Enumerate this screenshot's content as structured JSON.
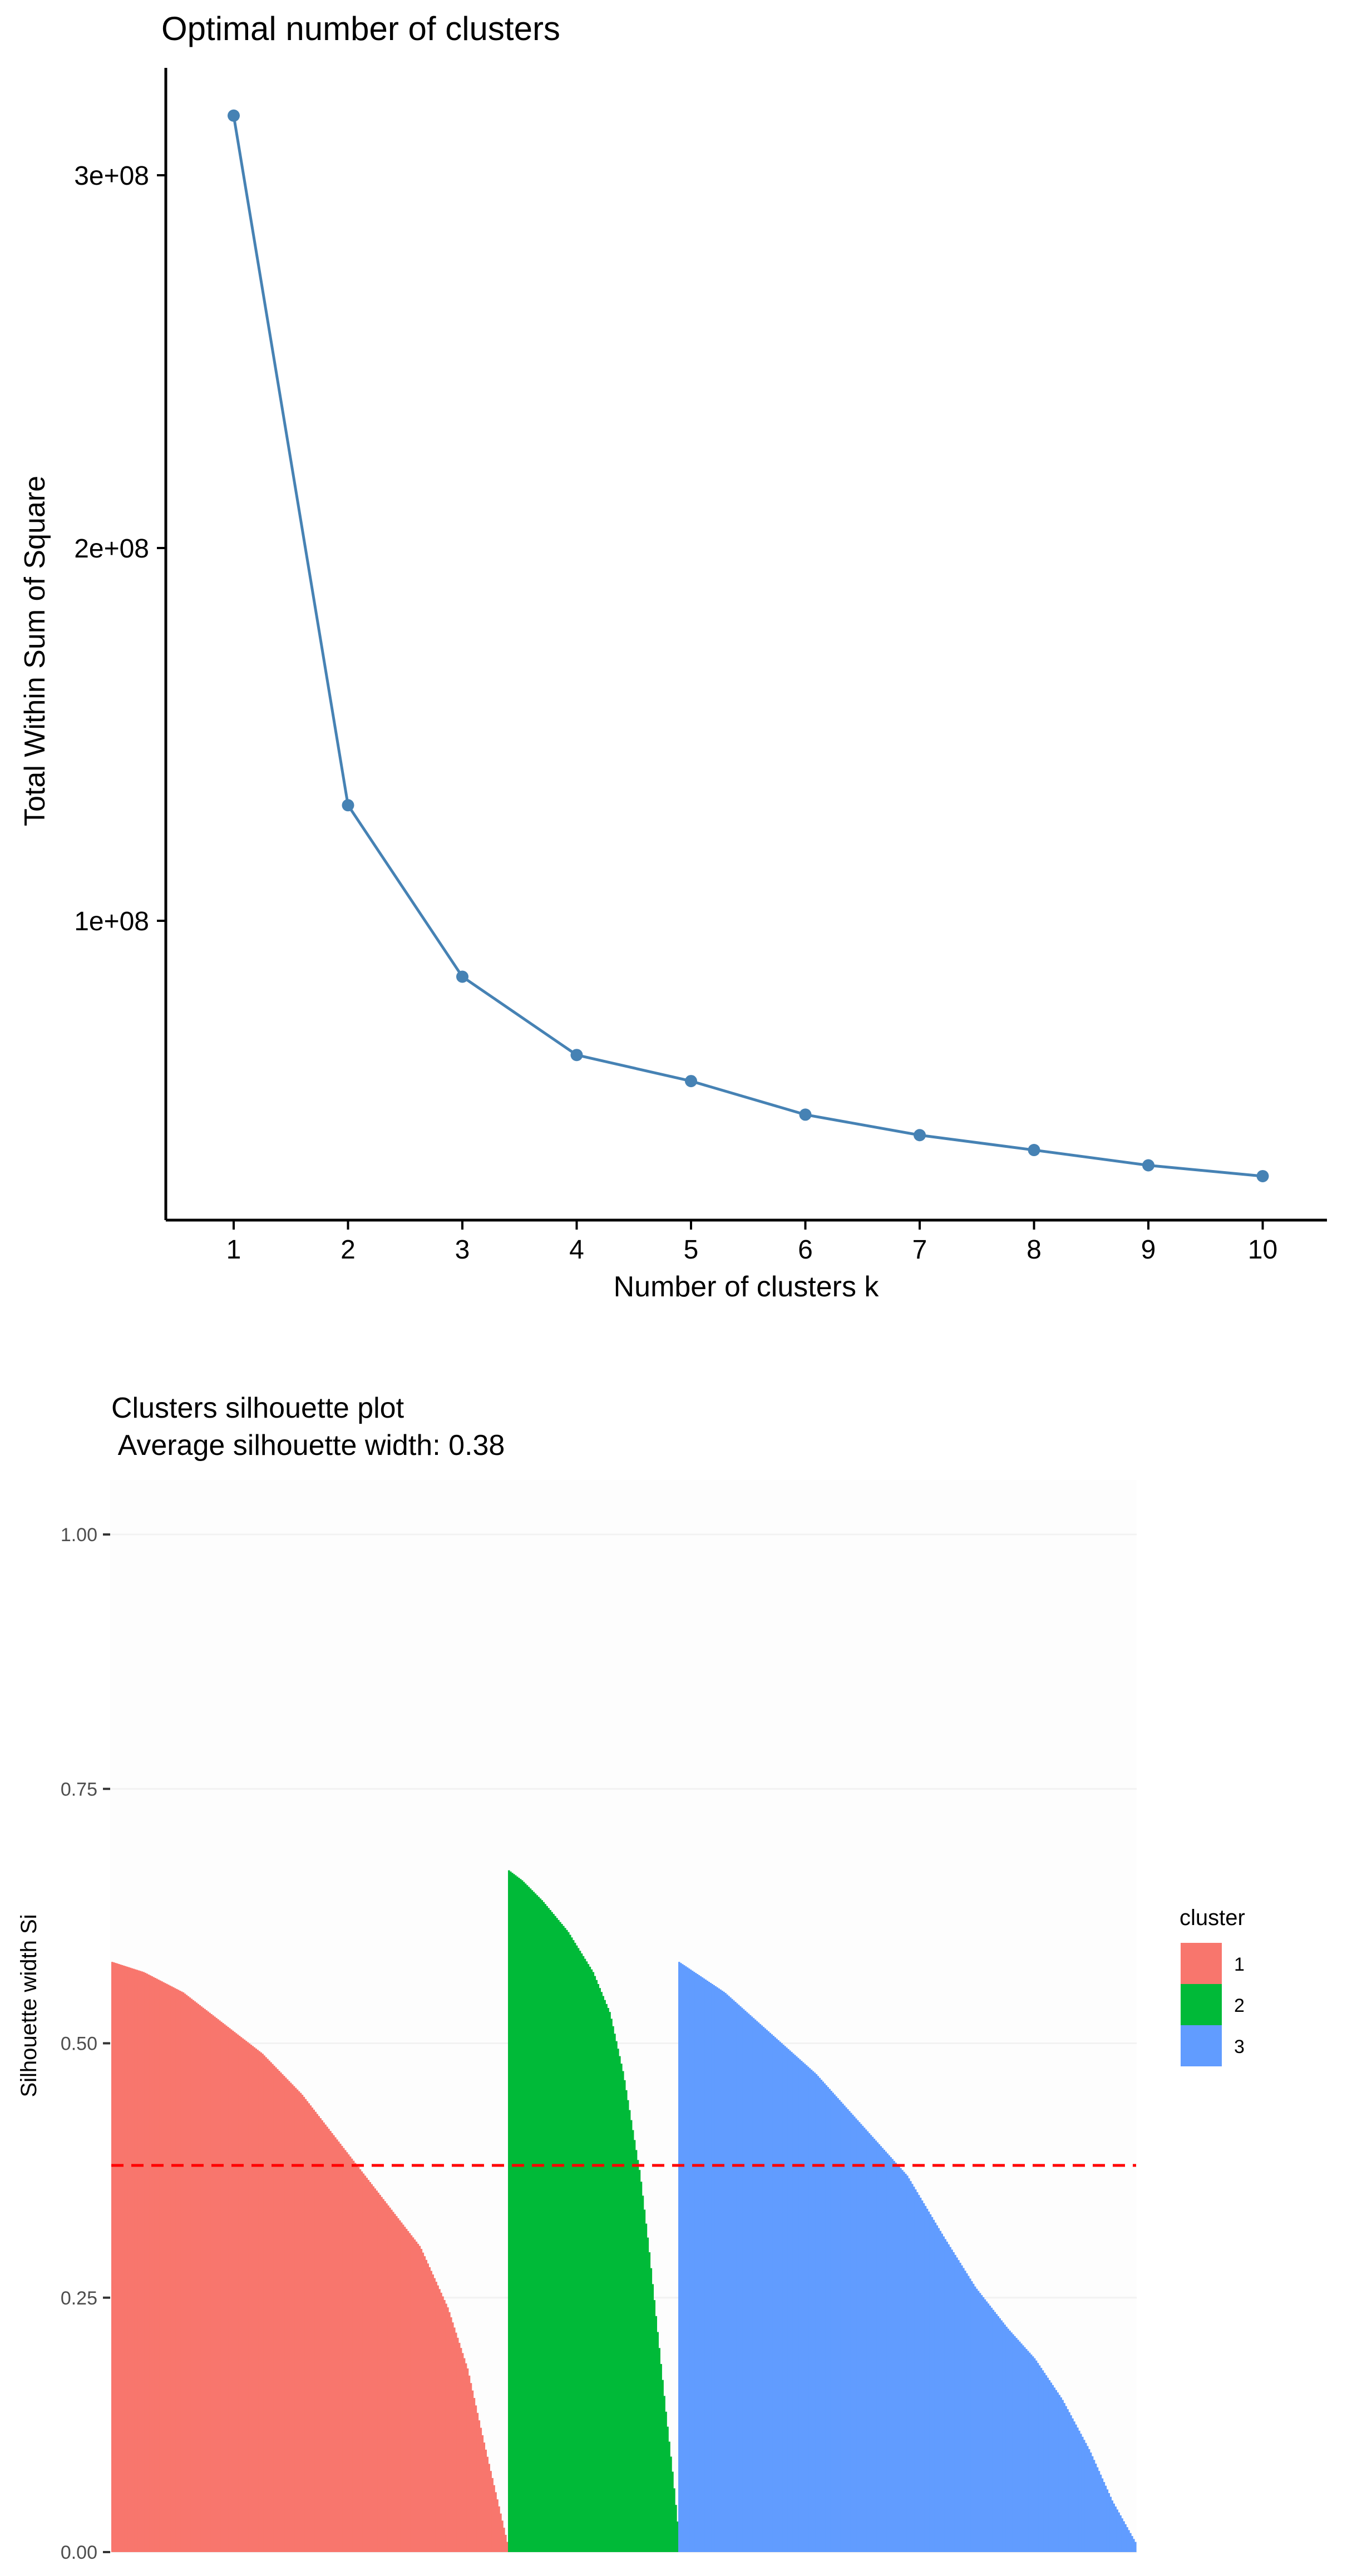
{
  "chart_data": [
    {
      "type": "line",
      "title": "Optimal number of clusters",
      "xlabel": "Number of clusters k",
      "ylabel": "Total Within Sum of Square",
      "x": [
        1,
        2,
        3,
        4,
        5,
        6,
        7,
        8,
        9,
        10
      ],
      "y": [
        316000000,
        131000000,
        85000000,
        64000000,
        57000000,
        48000000,
        42500000,
        38500000,
        34400000,
        31500000
      ],
      "yticks": [
        100000000,
        200000000,
        300000000
      ],
      "ytick_labels": [
        "1e+08",
        "2e+08",
        "3e+08"
      ],
      "xticks": [
        1,
        2,
        3,
        4,
        5,
        6,
        7,
        8,
        9,
        10
      ],
      "xtick_labels": [
        "1",
        "2",
        "3",
        "4",
        "5",
        "6",
        "7",
        "8",
        "9",
        "10"
      ],
      "ylim": [
        0,
        330000000
      ],
      "grid": false,
      "color": "#4682B4"
    },
    {
      "type": "bar",
      "title": "Clusters silhouette plot",
      "subtitle": " Average silhouette width: 0.38",
      "xlabel": "",
      "ylabel": "Silhouette width Si",
      "yticks": [
        0,
        0.25,
        0.5,
        0.75,
        1.0
      ],
      "ytick_labels": [
        "0.00",
        "0.25",
        "0.50",
        "0.75",
        "1.00"
      ],
      "ylim": [
        0,
        1.0
      ],
      "average_line": 0.38,
      "average_line_color": "#FF0000",
      "legend_title": "cluster",
      "legend_position": "right",
      "grid": true,
      "series": [
        {
          "name": "1",
          "color": "#F8766D",
          "count": 240,
          "profile": [
            [
              0,
              0.58
            ],
            [
              0.08,
              0.57
            ],
            [
              0.18,
              0.55
            ],
            [
              0.28,
              0.52
            ],
            [
              0.38,
              0.49
            ],
            [
              0.48,
              0.45
            ],
            [
              0.58,
              0.4
            ],
            [
              0.68,
              0.35
            ],
            [
              0.78,
              0.3
            ],
            [
              0.85,
              0.24
            ],
            [
              0.9,
              0.18
            ],
            [
              0.94,
              0.11
            ],
            [
              0.97,
              0.06
            ],
            [
              1.0,
              0.01
            ]
          ]
        },
        {
          "name": "2",
          "color": "#00BA38",
          "count": 103,
          "profile": [
            [
              0,
              0.67
            ],
            [
              0.08,
              0.66
            ],
            [
              0.2,
              0.64
            ],
            [
              0.35,
              0.61
            ],
            [
              0.5,
              0.57
            ],
            [
              0.6,
              0.53
            ],
            [
              0.68,
              0.47
            ],
            [
              0.73,
              0.42
            ],
            [
              0.78,
              0.37
            ],
            [
              0.83,
              0.3
            ],
            [
              0.88,
              0.22
            ],
            [
              0.93,
              0.14
            ],
            [
              0.97,
              0.08
            ],
            [
              1.0,
              0.03
            ]
          ]
        },
        {
          "name": "3",
          "color": "#619CFF",
          "count": 277,
          "profile": [
            [
              0,
              0.58
            ],
            [
              0.1,
              0.55
            ],
            [
              0.2,
              0.51
            ],
            [
              0.3,
              0.47
            ],
            [
              0.4,
              0.42
            ],
            [
              0.5,
              0.37
            ],
            [
              0.58,
              0.31
            ],
            [
              0.65,
              0.26
            ],
            [
              0.72,
              0.22
            ],
            [
              0.78,
              0.19
            ],
            [
              0.84,
              0.15
            ],
            [
              0.9,
              0.1
            ],
            [
              0.95,
              0.05
            ],
            [
              1.0,
              0.01
            ]
          ]
        }
      ]
    }
  ]
}
